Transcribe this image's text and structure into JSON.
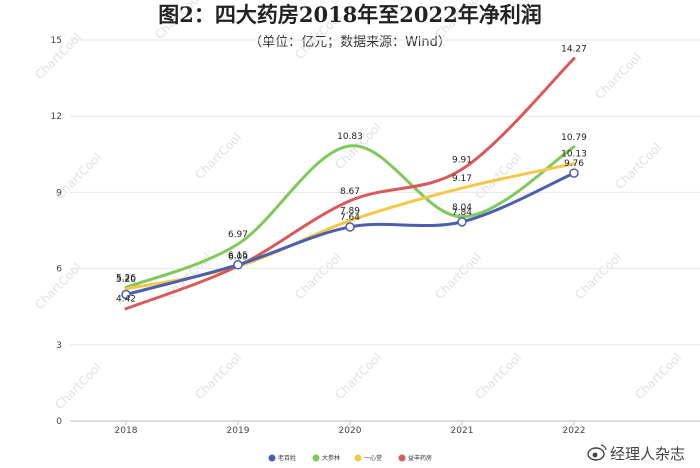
{
  "chart_data": {
    "type": "line",
    "title": "图2：四大药房2018年至2022年净利润",
    "subtitle": "（单位：亿元；数据来源：Wind）",
    "x": [
      "2018",
      "2019",
      "2020",
      "2021",
      "2022"
    ],
    "ylim": [
      0,
      15
    ],
    "yticks": [
      0,
      3,
      6,
      9,
      12,
      15
    ],
    "grid": true,
    "legend_position": "bottom-center",
    "series": [
      {
        "name": "老百姓",
        "color": "#4a5fb0",
        "values": [
          4.98,
          6.15,
          7.64,
          7.84,
          9.76
        ],
        "labels": [
          "",
          "6.15",
          "7.64",
          "7.84",
          "9.76"
        ],
        "markers": true
      },
      {
        "name": "大参林",
        "color": "#82c85a",
        "values": [
          5.26,
          6.97,
          10.83,
          8.04,
          10.79
        ],
        "labels": [
          "5.26",
          "6.97",
          "10.83",
          "8.04",
          "10.79"
        ],
        "markers": false
      },
      {
        "name": "一心堂",
        "color": "#f3c84a",
        "values": [
          5.2,
          6.09,
          7.89,
          9.17,
          10.13
        ],
        "labels": [
          "5.20",
          "6.09",
          "7.89",
          "9.17",
          "10.13"
        ],
        "markers": false
      },
      {
        "name": "益丰药房",
        "color": "#d95a5a",
        "values": [
          4.42,
          6.1,
          8.67,
          9.91,
          14.27
        ],
        "labels": [
          "4.42",
          "",
          "8.67",
          "9.91",
          "14.27"
        ],
        "markers": false
      }
    ]
  },
  "watermark": "ChartCool",
  "brand": {
    "icon": "weibo-icon",
    "text": "经理人杂志"
  }
}
